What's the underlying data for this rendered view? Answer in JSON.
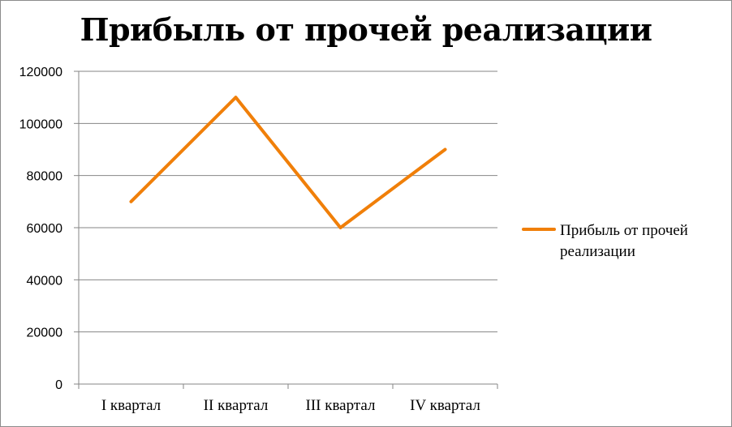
{
  "chart_data": {
    "type": "line",
    "title": "Прибыль от прочей реализации",
    "categories": [
      "I квартал",
      "II квартал",
      "III квартал",
      "IV квартал"
    ],
    "series": [
      {
        "name": "Прибыль от прочей реализации",
        "values": [
          70000,
          110000,
          60000,
          90000
        ],
        "color": "#f07f09"
      }
    ],
    "yticks": [
      "0",
      "20000",
      "40000",
      "60000",
      "80000",
      "100000",
      "120000"
    ],
    "ylim": [
      0,
      120000
    ],
    "grid": true,
    "legend_position": "right",
    "xlabel": "",
    "ylabel": ""
  }
}
